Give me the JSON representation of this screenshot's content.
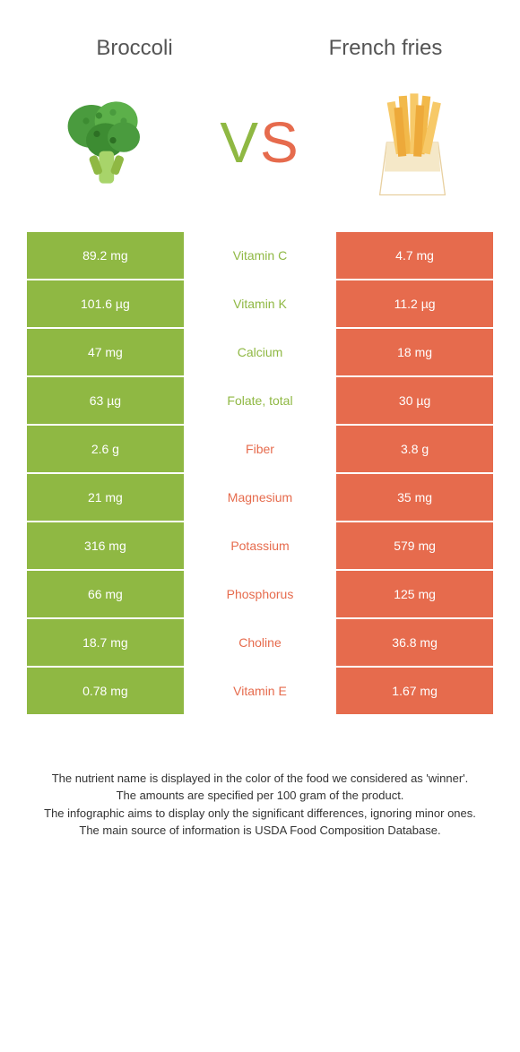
{
  "colors": {
    "left_bg": "#8fb843",
    "right_bg": "#e66b4d",
    "left_text": "#8fb843",
    "right_text": "#e66b4d"
  },
  "food_left": {
    "name": "Broccoli"
  },
  "food_right": {
    "name": "French fries"
  },
  "vs": {
    "v": "V",
    "s": "S"
  },
  "rows": [
    {
      "left": "89.2 mg",
      "label": "Vitamin C",
      "right": "4.7 mg",
      "winner": "left"
    },
    {
      "left": "101.6 µg",
      "label": "Vitamin K",
      "right": "11.2 µg",
      "winner": "left"
    },
    {
      "left": "47 mg",
      "label": "Calcium",
      "right": "18 mg",
      "winner": "left"
    },
    {
      "left": "63 µg",
      "label": "Folate, total",
      "right": "30 µg",
      "winner": "left"
    },
    {
      "left": "2.6 g",
      "label": "Fiber",
      "right": "3.8 g",
      "winner": "right"
    },
    {
      "left": "21 mg",
      "label": "Magnesium",
      "right": "35 mg",
      "winner": "right"
    },
    {
      "left": "316 mg",
      "label": "Potassium",
      "right": "579 mg",
      "winner": "right"
    },
    {
      "left": "66 mg",
      "label": "Phosphorus",
      "right": "125 mg",
      "winner": "right"
    },
    {
      "left": "18.7 mg",
      "label": "Choline",
      "right": "36.8 mg",
      "winner": "right"
    },
    {
      "left": "0.78 mg",
      "label": "Vitamin E",
      "right": "1.67 mg",
      "winner": "right"
    }
  ],
  "footer": {
    "l1": "The nutrient name is displayed in the color of the food we considered as 'winner'.",
    "l2": "The amounts are specified per 100 gram of the product.",
    "l3": "The infographic aims to display only the significant differences, ignoring minor ones.",
    "l4": "The main source of information is USDA Food Composition Database."
  }
}
